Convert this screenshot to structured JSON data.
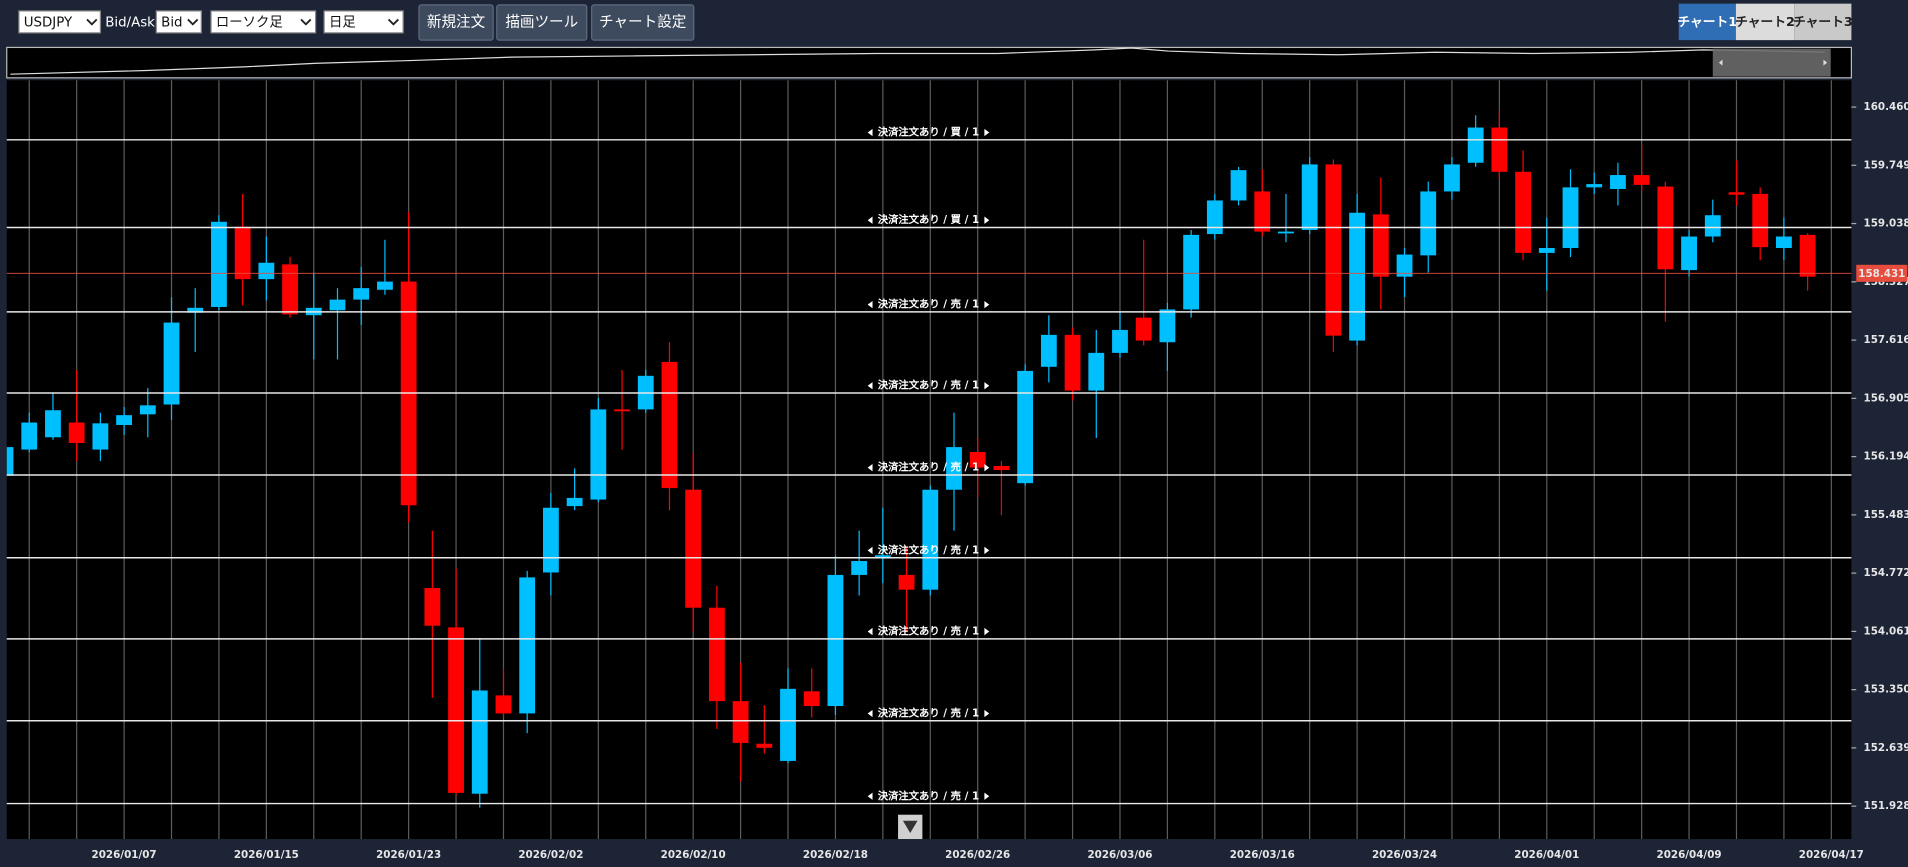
{
  "toolbar": {
    "symbol": "USDJPY",
    "price_type_label": "Bid/Ask",
    "price_type": "Bid",
    "chart_style": "ローソク足",
    "period": "日足",
    "buttons": [
      "新規注文",
      "描画ツール",
      "チャート設定"
    ],
    "tabs": [
      "チャート1",
      "チャート2",
      "チャート3"
    ]
  },
  "chart_data": {
    "type": "candlestick",
    "up_color": "#00bfff",
    "down_color": "#ff0000",
    "grid": true,
    "categories": [
      null,
      null,
      null,
      null,
      null,
      "2026/01/07",
      null,
      null,
      null,
      null,
      null,
      "2026/01/15",
      null,
      null,
      null,
      null,
      null,
      "2026/01/23",
      null,
      null,
      null,
      null,
      null,
      "2026/02/02",
      null,
      null,
      null,
      null,
      null,
      "2026/02/10",
      null,
      null,
      null,
      null,
      null,
      "2026/02/18",
      null,
      null,
      null,
      null,
      null,
      "2026/02/26",
      null,
      null,
      null,
      null,
      null,
      "2026/03/06",
      null,
      null,
      null,
      null,
      null,
      "2026/03/16",
      null,
      null,
      null,
      null,
      null,
      "2026/03/24",
      null,
      null,
      null,
      null,
      null,
      "2026/04/01",
      null,
      null,
      null,
      null,
      null,
      "2026/04/09",
      null,
      null,
      null,
      null,
      null,
      "2026/04/17"
    ],
    "open": [
      155.96,
      156.28,
      156.43,
      156.61,
      156.28,
      156.58,
      156.71,
      156.83,
      157.95,
      158.02,
      159.0,
      158.36,
      158.54,
      157.92,
      157.98,
      158.11,
      158.23,
      158.33,
      154.59,
      154.11,
      152.08,
      153.28,
      153.06,
      154.78,
      155.59,
      155.67,
      156.77,
      156.77,
      157.35,
      155.79,
      154.35,
      153.21,
      152.69,
      152.48,
      153.33,
      153.15,
      154.75,
      154.95,
      154.75,
      154.57,
      155.79,
      156.25,
      156.08,
      155.87,
      157.29,
      157.68,
      157.0,
      157.46,
      157.89,
      157.59,
      157.99,
      158.91,
      159.32,
      159.43,
      158.93,
      158.96,
      159.76,
      157.61,
      159.15,
      158.39,
      158.65,
      159.43,
      159.78,
      160.21,
      159.67,
      158.68,
      158.74,
      159.48,
      159.46,
      159.63,
      159.49,
      158.47,
      158.88,
      159.42,
      159.4,
      158.74,
      158.9,
      null
    ],
    "high": [
      156.51,
      156.73,
      156.97,
      157.25,
      156.73,
      156.8,
      157.03,
      158.14,
      158.25,
      159.14,
      159.4,
      158.88,
      158.63,
      158.44,
      158.25,
      158.51,
      158.84,
      159.18,
      155.29,
      154.83,
      153.98,
      153.61,
      154.8,
      155.75,
      156.05,
      156.91,
      157.25,
      157.25,
      157.59,
      156.24,
      154.62,
      153.68,
      153.16,
      153.61,
      153.61,
      154.98,
      155.29,
      155.57,
      155.09,
      155.84,
      156.73,
      156.43,
      156.14,
      157.32,
      157.92,
      157.77,
      157.74,
      157.96,
      158.84,
      158.07,
      158.96,
      159.4,
      159.73,
      159.7,
      159.4,
      159.85,
      159.82,
      159.4,
      159.6,
      158.74,
      159.55,
      159.85,
      160.36,
      160.42,
      159.93,
      159.11,
      159.7,
      159.66,
      159.78,
      160.0,
      159.55,
      158.96,
      159.33,
      159.81,
      159.48,
      159.11,
      158.92,
      null
    ],
    "low": [
      155.69,
      156.25,
      156.4,
      156.14,
      156.14,
      156.46,
      156.43,
      156.64,
      157.47,
      157.98,
      158.04,
      158.1,
      157.89,
      157.38,
      157.38,
      157.8,
      158.17,
      155.39,
      153.25,
      152.06,
      151.91,
      153.01,
      152.82,
      154.5,
      155.54,
      155.64,
      156.28,
      156.73,
      155.54,
      154.05,
      152.87,
      152.23,
      152.57,
      152.45,
      153.01,
      153.04,
      154.5,
      154.65,
      154.05,
      154.5,
      155.29,
      155.69,
      155.48,
      155.84,
      157.1,
      156.88,
      156.42,
      157.4,
      157.55,
      157.24,
      157.89,
      158.84,
      159.26,
      158.88,
      158.81,
      158.91,
      157.47,
      157.55,
      157.99,
      158.14,
      158.44,
      159.33,
      159.73,
      159.58,
      158.59,
      158.22,
      158.63,
      159.4,
      159.26,
      159.43,
      157.84,
      158.39,
      158.81,
      159.26,
      158.59,
      158.59,
      158.22,
      null
    ],
    "close": [
      156.31,
      156.61,
      156.76,
      156.36,
      156.6,
      156.7,
      156.82,
      157.83,
      158.01,
      159.06,
      158.36,
      158.56,
      157.93,
      158.01,
      158.11,
      158.25,
      158.33,
      155.6,
      154.13,
      152.09,
      153.34,
      153.06,
      154.72,
      155.57,
      155.69,
      156.77,
      156.76,
      157.18,
      155.81,
      154.35,
      153.21,
      152.7,
      152.64,
      153.36,
      153.15,
      154.75,
      154.92,
      154.99,
      154.57,
      155.79,
      156.31,
      156.06,
      156.03,
      157.24,
      157.68,
      157.0,
      157.46,
      157.74,
      157.61,
      157.99,
      158.9,
      159.32,
      159.69,
      158.94,
      158.94,
      159.76,
      157.67,
      159.17,
      158.39,
      158.66,
      159.43,
      159.76,
      160.21,
      159.67,
      158.68,
      158.74,
      159.48,
      159.52,
      159.63,
      159.51,
      158.48,
      158.88,
      159.14,
      159.39,
      158.75,
      158.88,
      158.39,
      null
    ],
    "ylim": [
      151.527,
      160.787
    ],
    "yticks": [
      {
        "value": 160.46,
        "label": "160.460"
      },
      159.749,
      159.038,
      158.327,
      157.616,
      156.905,
      156.194,
      155.483,
      154.772,
      154.061,
      {
        "value": 153.35,
        "label": "153.350"
      },
      152.639,
      151.928
    ],
    "current_price": 158.431,
    "current_price_color": "#e74c3c",
    "order_lines": [
      {
        "label": "決済注文あり / 買 / 1",
        "value": 160.06
      },
      {
        "label": "決済注文あり / 買 / 1",
        "value": 158.99
      },
      {
        "label": "決済注文あり / 売 / 1",
        "value": 157.96
      },
      {
        "label": "決済注文あり / 売 / 1",
        "value": 156.97
      },
      {
        "label": "決済注文あり / 売 / 1",
        "value": 155.97
      },
      {
        "label": "決済注文あり / 売 / 1",
        "value": 154.96
      },
      {
        "label": "決済注文あり / 売 / 1",
        "value": 153.97
      },
      {
        "label": "決済注文あり / 売 / 1",
        "value": 152.97
      },
      {
        "label": "決済注文あり / 売 / 1",
        "value": 151.96
      }
    ]
  }
}
